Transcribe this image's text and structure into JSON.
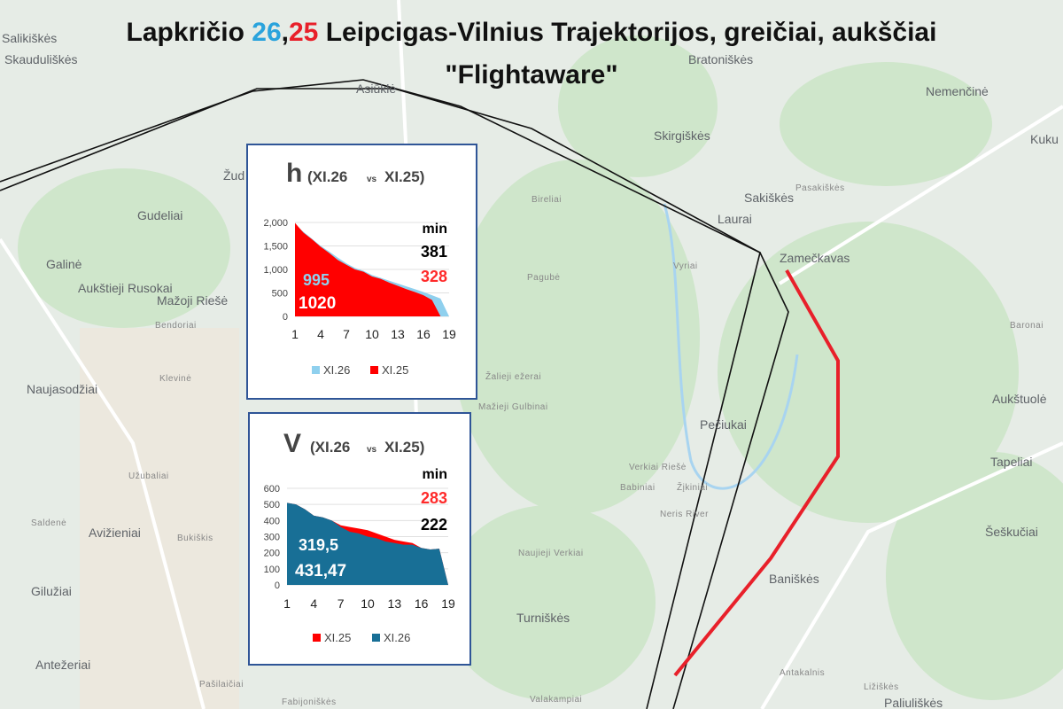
{
  "title": {
    "line1": [
      "Lapkričio ",
      "26",
      ",",
      "25",
      " Leipcigas-Vilnius Trajektorijos, greičiai, aukščiai"
    ],
    "line2": "\"Flightaware\""
  },
  "map": {
    "labels": [
      "Salikiškės",
      "Skauduliškės",
      "Asiūklė",
      "Bratoniškės",
      "Nemenčinė",
      "Skirgiškės",
      "Kuku",
      "Žud",
      "Gudeliai",
      "Sakiškės",
      "Pasakiškės",
      "Bireliai",
      "Laurai",
      "Zamečkavas",
      "Galinė",
      "Aukštieji Rusokai",
      "Mažoji Riešė",
      "Pagubė",
      "Vyriai",
      "Bendoriai",
      "Baronai",
      "Klevinė",
      "Naujasodžiai",
      "Žalieji ežerai",
      "Aukštuolė",
      "Mažieji Gulbinai",
      "Pečiukai",
      "Tapeliai",
      "Verkiai Riešė",
      "Babiniai",
      "Žįkiniai",
      "Neris River",
      "Užubaliai",
      "Saldenė",
      "Avižieniai",
      "Bukiškis",
      "Šeškučiai",
      "Naujieji Verkiai",
      "Baniškės",
      "Gilužiai",
      "Turniškės",
      "Antežeriai",
      "Antakalnis",
      "Pašilaičiai",
      "Fabijoniškės",
      "Valakampiai",
      "Ližiškės",
      "Paliuliškės"
    ]
  },
  "chart_data": [
    {
      "type": "area",
      "title": "h",
      "subtitle": [
        "(XI.26",
        "vs",
        "XI.25)"
      ],
      "categories": [
        "1",
        null,
        null,
        "4",
        null,
        null,
        "7",
        null,
        null,
        "10",
        null,
        null,
        "13",
        null,
        null,
        "16",
        null,
        null,
        "19"
      ],
      "ylim": [
        0,
        2000
      ],
      "yticks": [
        0,
        500,
        {
          "value": 1000,
          "label": "1,000"
        },
        {
          "value": 1500,
          "label": "1,500"
        },
        {
          "value": 2000,
          "label": "2,000"
        }
      ],
      "series": [
        {
          "name": "XI.26",
          "color": "#8fd0ee",
          "values": [
            1950,
            1800,
            1650,
            1500,
            1380,
            1250,
            1130,
            1030,
            970,
            880,
            820,
            760,
            700,
            640,
            580,
            520,
            450,
            380,
            0
          ]
        },
        {
          "name": "XI.25",
          "color": "#ff0000",
          "values": [
            1990,
            1780,
            1640,
            1480,
            1350,
            1200,
            1100,
            1000,
            950,
            850,
            800,
            720,
            650,
            580,
            520,
            450,
            350,
            0,
            null
          ]
        }
      ],
      "annotations": [
        {
          "text": "min",
          "color": "#000000"
        },
        {
          "text": "381",
          "color": "#000000"
        },
        {
          "text": "328",
          "color": "#ff2a2a"
        },
        {
          "text": "995",
          "color": "#8fd0ee"
        },
        {
          "text": "1020",
          "color": "#ffffff"
        }
      ]
    },
    {
      "type": "area",
      "title": "V",
      "subtitle": [
        "(XI.26",
        "vs",
        "XI.25)"
      ],
      "categories": [
        "1",
        null,
        null,
        "4",
        null,
        null,
        "7",
        null,
        null,
        "10",
        null,
        null,
        "13",
        null,
        null,
        "16",
        null,
        null,
        "19"
      ],
      "ylim": [
        0,
        600
      ],
      "yticks": [
        0,
        100,
        200,
        300,
        400,
        500,
        600
      ],
      "series": [
        {
          "name": "XI.25",
          "color": "#ff0000",
          "values": [
            510,
            500,
            470,
            430,
            420,
            400,
            370,
            360,
            350,
            340,
            320,
            300,
            280,
            270,
            260,
            230,
            220,
            225,
            0
          ]
        },
        {
          "name": "XI.26",
          "color": "#186f96",
          "values": [
            510,
            500,
            470,
            430,
            420,
            400,
            360,
            330,
            320,
            300,
            290,
            270,
            260,
            250,
            250,
            230,
            220,
            225,
            0
          ]
        }
      ],
      "annotations": [
        {
          "text": "min",
          "color": "#000000"
        },
        {
          "text": "283",
          "color": "#ff2a2a"
        },
        {
          "text": "222",
          "color": "#000000"
        },
        {
          "text": "319,5",
          "color": "#ffffff"
        },
        {
          "text": "431,47",
          "color": "#ffffff"
        }
      ]
    }
  ]
}
